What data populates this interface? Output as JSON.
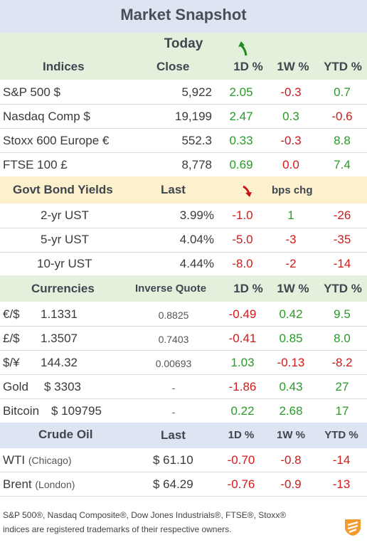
{
  "title": "Market Snapshot",
  "today": "Today",
  "colors": {
    "positive": "#2a9a2a",
    "negative": "#d11a1a",
    "header_blue": "#dde4f2",
    "header_green": "#e3f1dc",
    "header_yellow": "#fdf0cc"
  },
  "indices": {
    "header": {
      "label": "Indices",
      "close": "Close",
      "d1": "1D %",
      "w1": "1W %",
      "ytd": "YTD %"
    },
    "rows": [
      {
        "name": "S&P 500  $",
        "close": "5,922",
        "d1": "2.05",
        "w1": "-0.3",
        "ytd": "0.7"
      },
      {
        "name": "Nasdaq Comp  $",
        "close": "19,199",
        "d1": "2.47",
        "w1": "0.3",
        "ytd": "-0.6"
      },
      {
        "name": "Stoxx 600 Europe  €",
        "close": "552.3",
        "d1": "0.33",
        "w1": "-0.3",
        "ytd": "8.8"
      },
      {
        "name": "FTSE 100 £",
        "close": "8,778",
        "d1": "0.69",
        "w1": "0.0",
        "ytd": "7.4"
      }
    ]
  },
  "bonds": {
    "header": {
      "label": "Govt Bond Yields",
      "last": "Last",
      "chg": "bps chg"
    },
    "rows": [
      {
        "name": "2-yr UST",
        "last": "3.99%",
        "d1": "-1.0",
        "w1": "1",
        "ytd": "-26"
      },
      {
        "name": "5-yr UST",
        "last": "4.04%",
        "d1": "-5.0",
        "w1": "-3",
        "ytd": "-35"
      },
      {
        "name": "10-yr UST",
        "last": "4.44%",
        "d1": "-8.0",
        "w1": "-2",
        "ytd": "-14"
      }
    ]
  },
  "currencies": {
    "header": {
      "label": "Currencies",
      "inverse": "Inverse Quote",
      "d1": "1D %",
      "w1": "1W %",
      "ytd": "YTD %"
    },
    "rows": [
      {
        "sym": "€/$",
        "val": "1.1331",
        "inv": "0.8825",
        "d1": "-0.49",
        "w1": "0.42",
        "ytd": "9.5"
      },
      {
        "sym": "£/$",
        "val": "1.3507",
        "inv": "0.7403",
        "d1": "-0.41",
        "w1": "0.85",
        "ytd": "8.0"
      },
      {
        "sym": "$/¥",
        "val": "144.32",
        "inv": "0.00693",
        "d1": "1.03",
        "w1": "-0.13",
        "ytd": "-8.2"
      },
      {
        "sym": "Gold",
        "val": "$ 3303",
        "inv": "-",
        "d1": "-1.86",
        "w1": "0.43",
        "ytd": "27"
      },
      {
        "sym": "Bitcoin",
        "val": "$ 109795",
        "inv": "-",
        "d1": "0.22",
        "w1": "2.68",
        "ytd": "17"
      }
    ]
  },
  "crude": {
    "header": {
      "label": "Crude Oil",
      "last": "Last",
      "d1": "1D %",
      "w1": "1W %",
      "ytd": "YTD %"
    },
    "rows": [
      {
        "name": "WTI",
        "loc": "(Chicago)",
        "last": "$ 61.10",
        "d1": "-0.70",
        "w1": "-0.8",
        "ytd": "-14"
      },
      {
        "name": "Brent",
        "loc": "(London)",
        "last": "$ 64.29",
        "d1": "-0.76",
        "w1": "-0.9",
        "ytd": "-13"
      }
    ]
  },
  "footnote": {
    "line1": "S&P 500®, Nasdaq Composite®, Dow Jones Industrials®, FTSE®, Stoxx®",
    "line2": "indices are registered trademarks of their respective owners."
  },
  "icons": {
    "up": "up-arrow-icon",
    "down": "down-arrow-icon",
    "logo": "brand-logo-icon"
  }
}
